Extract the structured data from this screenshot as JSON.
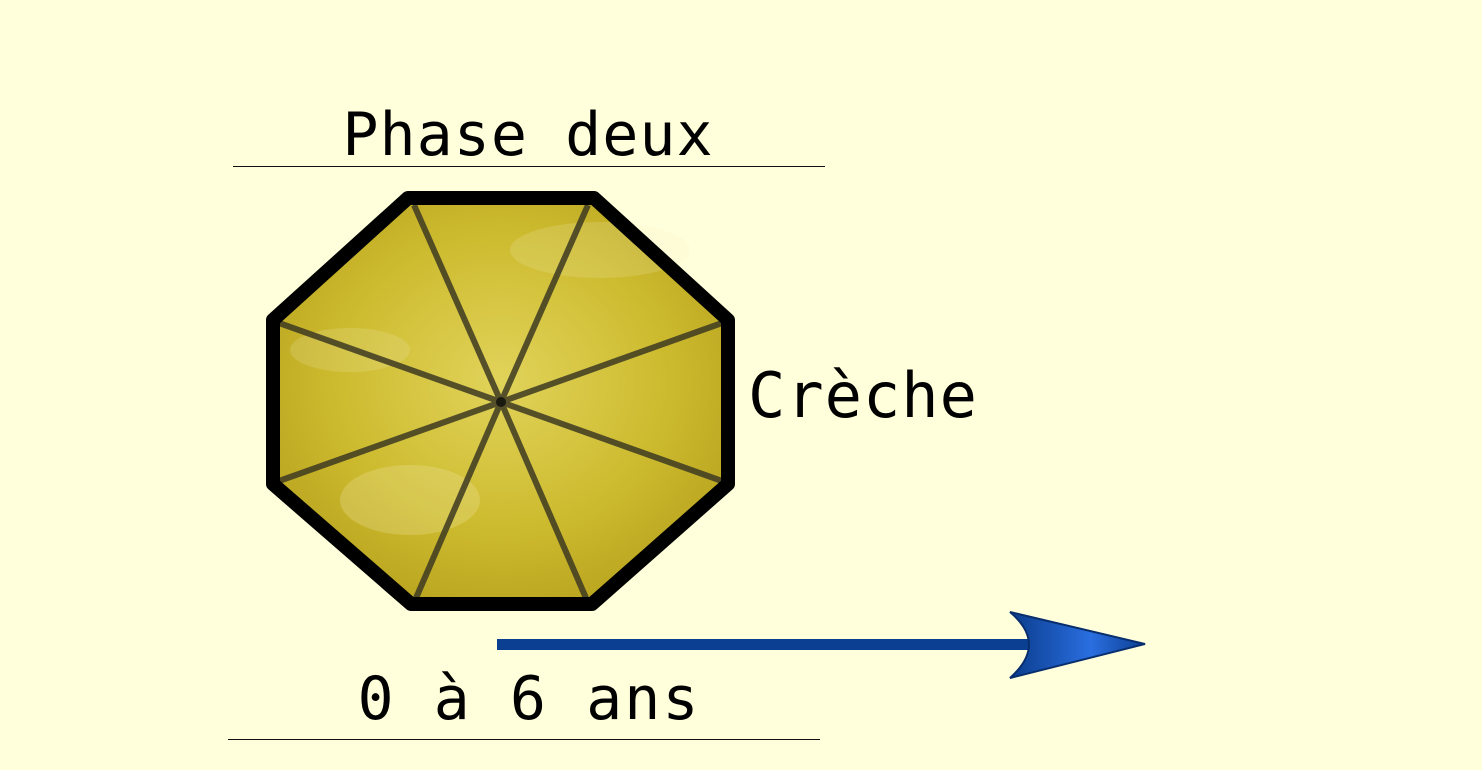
{
  "title": "Phase deux",
  "side_label": "Crèche",
  "age_label": "0 à 6 ans",
  "colors": {
    "background": "#FFFFDC",
    "octagon_fill": "#D8C83C",
    "octagon_outline": "#000000",
    "arrow": "#0B3F91"
  },
  "icons": {
    "octagon": "octagon-8-sector-icon",
    "arrow": "right-arrow-icon"
  }
}
